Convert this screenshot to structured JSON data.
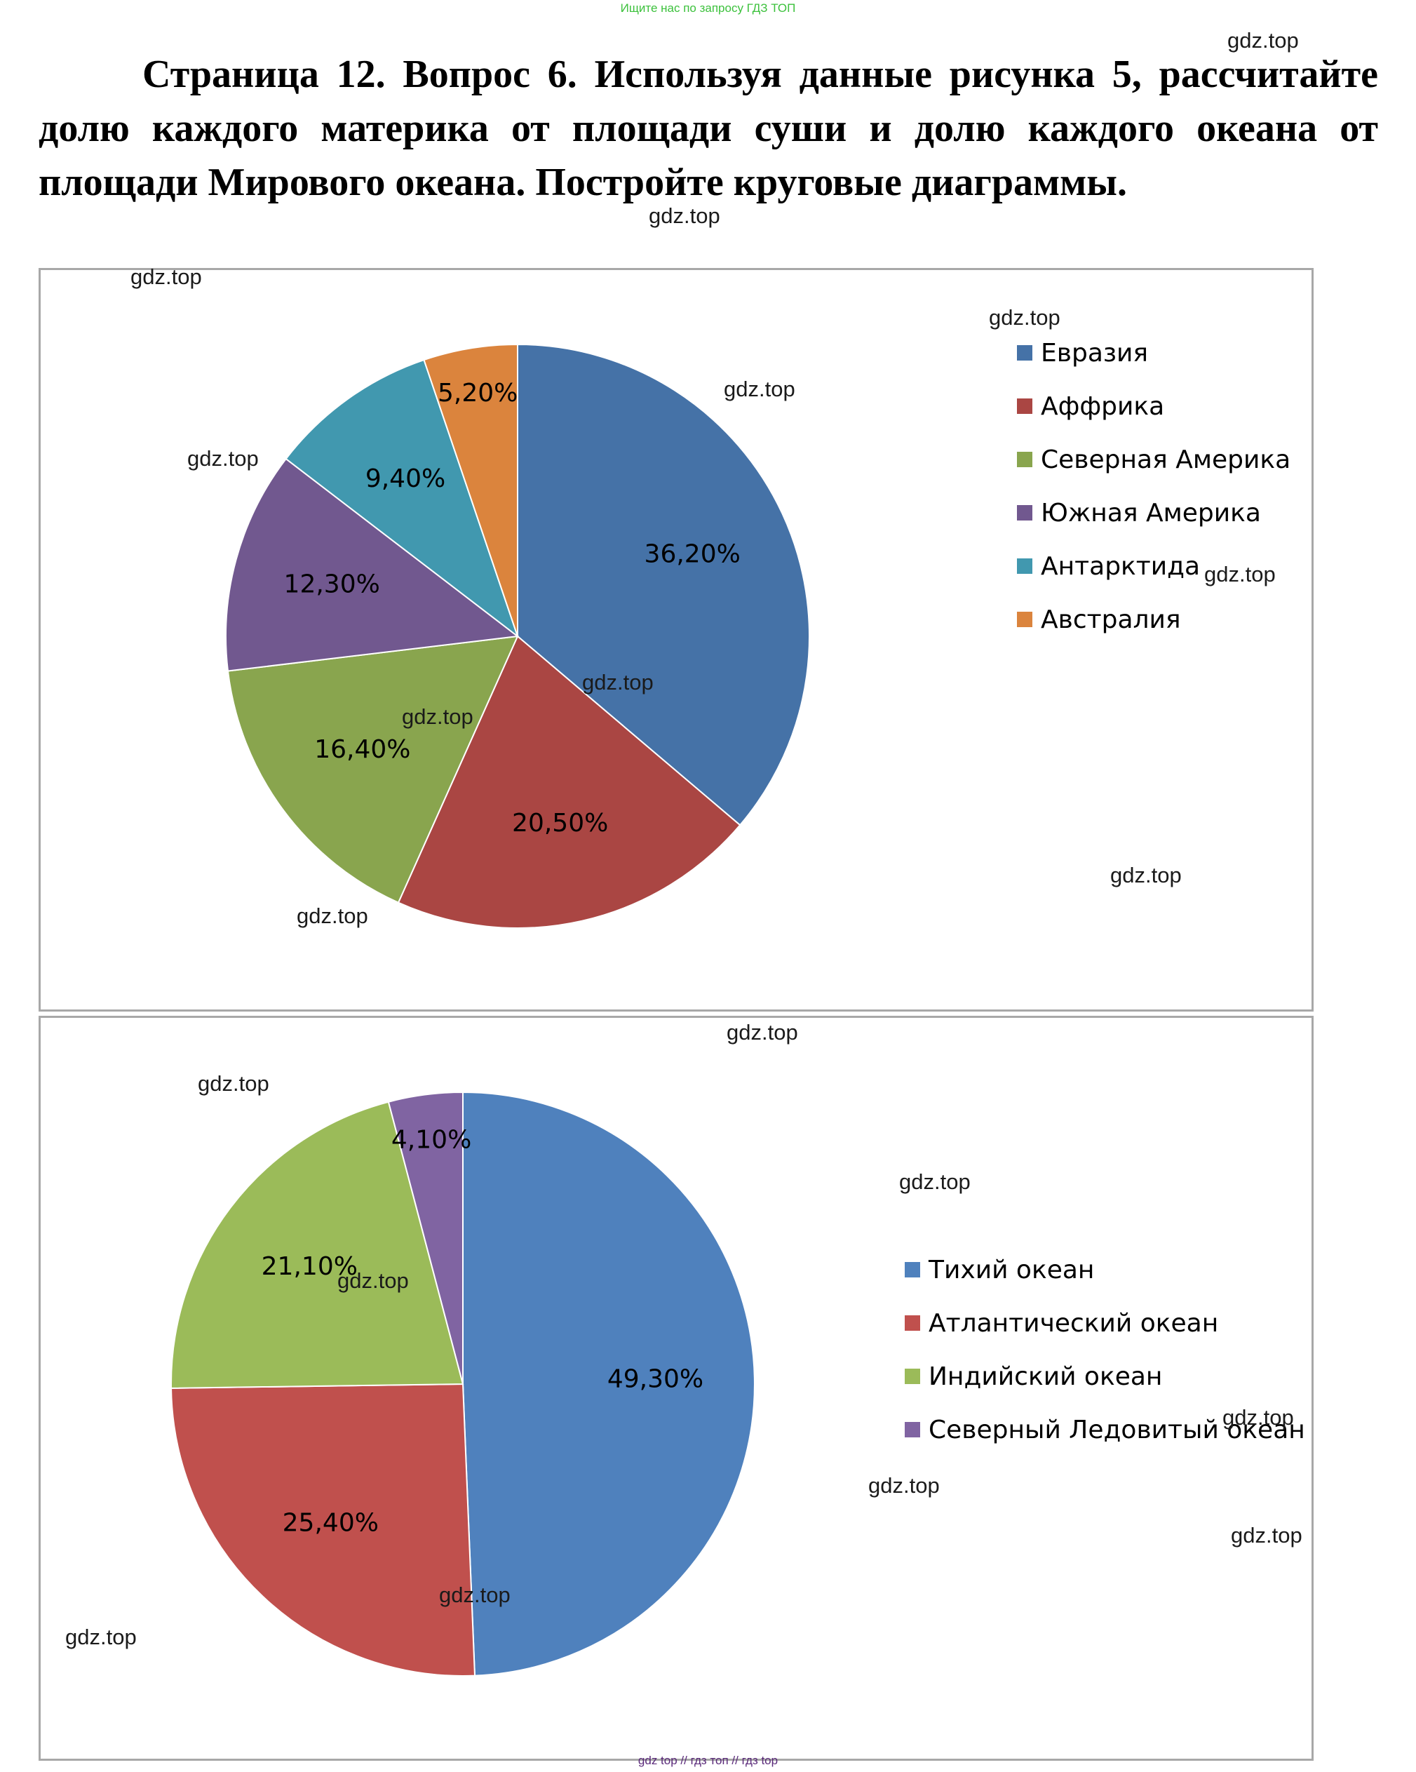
{
  "top_note": "Ищите нас по запросу ГДЗ ТОП",
  "question": "Страница 12. Вопрос 6. Используя данные рисунка 5, рассчитайте долю каждого материка от площади суши и долю каждого океана от площади Мирового океана. Постройте круговые диаграммы.",
  "watermark_text": "gdz.top",
  "footer": "gdz top  //  гдз топ  //  гдз top",
  "chart_data": [
    {
      "type": "pie",
      "title": "",
      "categories": [
        "Евразия",
        "Аффрика",
        "Северная Америка",
        "Южная Америка",
        "Антарктида",
        "Австралия"
      ],
      "values": [
        36.2,
        20.5,
        16.4,
        12.3,
        9.4,
        5.2
      ],
      "labels": [
        "36,20%",
        "20,50%",
        "16,40%",
        "12,30%",
        "9,40%",
        "5,20%"
      ],
      "colors": [
        "#4572a7",
        "#aa4643",
        "#89a54e",
        "#71588f",
        "#4198af",
        "#db843d"
      ],
      "start": "12 o'clock",
      "direction": "clockwise",
      "legend_position": "right"
    },
    {
      "type": "pie",
      "title": "",
      "categories": [
        "Тихий океан",
        "Атлантический океан",
        "Индийский океан",
        "Северный Ледовитый океан"
      ],
      "values": [
        49.3,
        25.4,
        21.1,
        4.1
      ],
      "labels": [
        "49,30%",
        "25,40%",
        "21,10%",
        "4,10%"
      ],
      "colors": [
        "#4f81bd",
        "#c0504d",
        "#9bbb59",
        "#8064a2"
      ],
      "start": "12 o'clock",
      "direction": "clockwise",
      "legend_position": "right"
    }
  ]
}
